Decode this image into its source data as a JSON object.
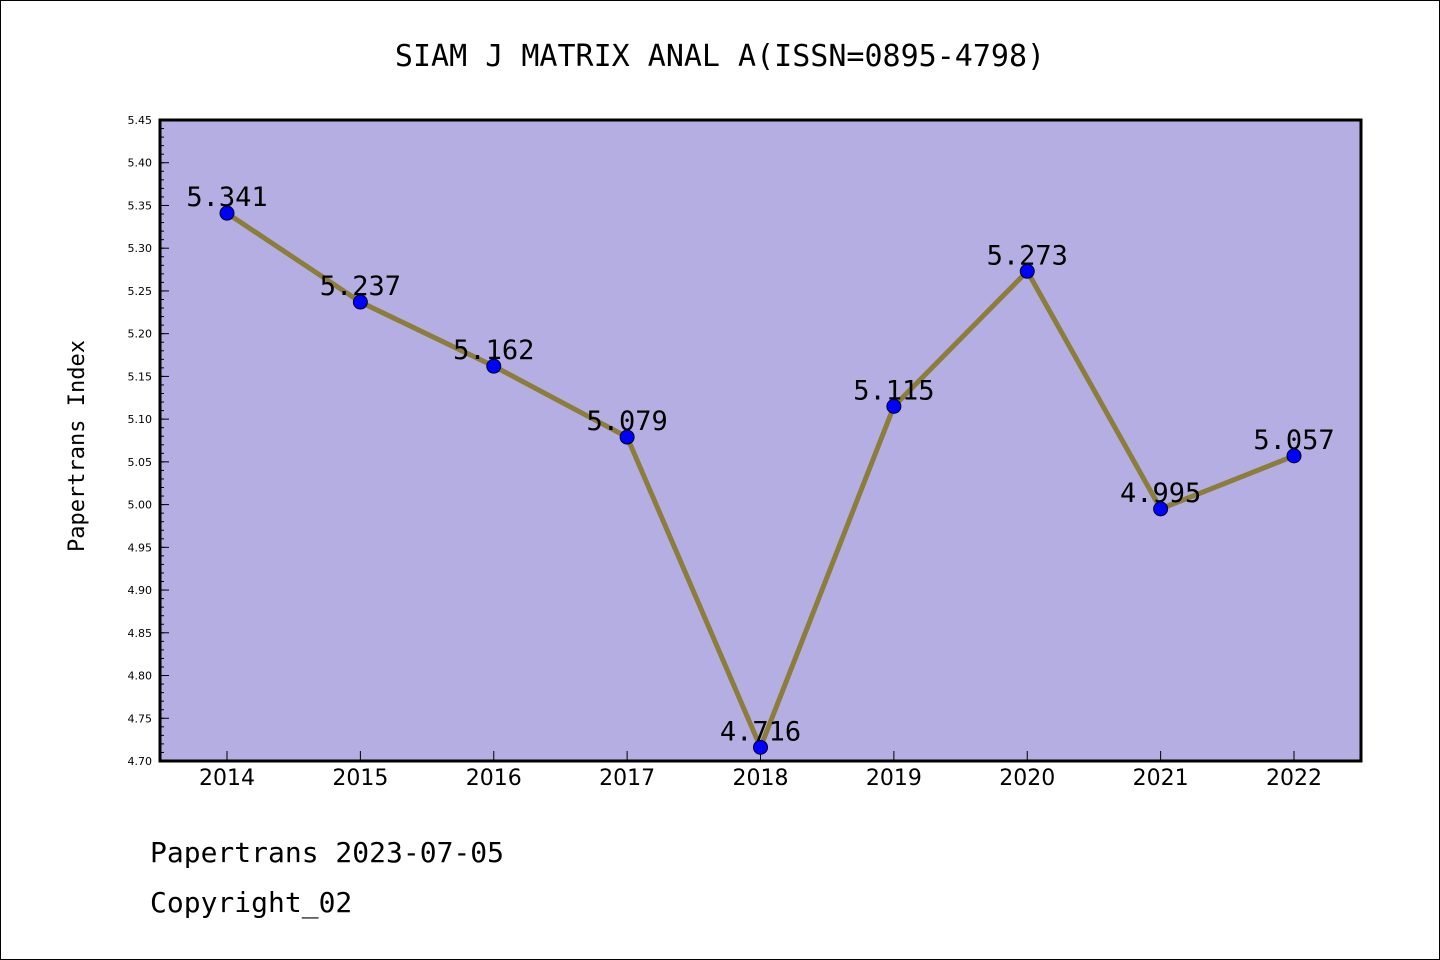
{
  "chart_data": {
    "type": "line",
    "title": "SIAM J MATRIX ANAL A(ISSN=0895-4798)",
    "ylabel": "Papertrans Index",
    "xlabel": "",
    "categories": [
      "2014",
      "2015",
      "2016",
      "2017",
      "2018",
      "2019",
      "2020",
      "2021",
      "2022"
    ],
    "values": [
      5.341,
      5.237,
      5.162,
      5.079,
      4.716,
      5.115,
      5.273,
      4.995,
      5.057
    ],
    "data_labels": [
      "5.341",
      "5.237",
      "5.162",
      "5.079",
      "4.716",
      "5.115",
      "5.273",
      "4.995",
      "5.057"
    ],
    "ylim": [
      4.7,
      5.45
    ],
    "yticks": [
      "4.70",
      "4.75",
      "4.80",
      "4.85",
      "4.90",
      "4.95",
      "5.00",
      "5.05",
      "5.10",
      "5.15",
      "5.20",
      "5.25",
      "5.30",
      "5.35",
      "5.40",
      "5.45"
    ],
    "grid": false,
    "colors": {
      "plot_background": "#b5aee2",
      "line": "#8b7d3a",
      "marker": "#0000ff"
    }
  },
  "footer": {
    "line1": "Papertrans 2023-07-05",
    "line2": "Copyright_02"
  }
}
